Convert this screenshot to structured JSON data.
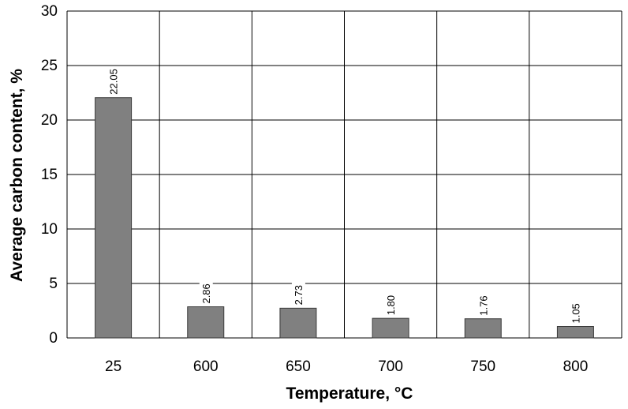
{
  "chart_data": {
    "type": "bar",
    "title": "",
    "xlabel": "Temperature, °C",
    "ylabel": "Average carbon content, %",
    "categories": [
      "25",
      "600",
      "650",
      "700",
      "750",
      "800"
    ],
    "values": [
      22.05,
      2.86,
      2.73,
      1.8,
      1.76,
      1.05
    ],
    "data_labels": [
      "22.05",
      "2.86",
      "2.73",
      "1.80",
      "1.76",
      "1.05"
    ],
    "yticks": [
      "0",
      "5",
      "10",
      "15",
      "20",
      "25",
      "30"
    ],
    "ylim": [
      0,
      30
    ],
    "grid": true,
    "legend": "none",
    "bar_color": "#808080"
  }
}
